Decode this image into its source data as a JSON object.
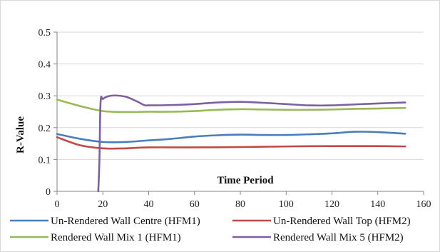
{
  "chart_data": {
    "type": "line",
    "title": "",
    "xlabel": "Time Period",
    "ylabel": "R-Value",
    "xlim": [
      0,
      160
    ],
    "ylim": [
      0,
      0.5
    ],
    "x_ticks": [
      0,
      20,
      40,
      60,
      80,
      100,
      120,
      140,
      160
    ],
    "y_ticks": [
      0,
      0.1,
      0.2,
      0.3,
      0.4,
      0.5
    ],
    "x_tick_labels": [
      "0",
      "20",
      "40",
      "60",
      "80",
      "100",
      "120",
      "140",
      "160"
    ],
    "y_tick_labels": [
      "0",
      "0.1",
      "0.2",
      "0.3",
      "0.4",
      "0.5"
    ],
    "grid": "horizontal",
    "legend_position": "bottom",
    "series": [
      {
        "name": "Un-Rendered Wall Centre (HFM1)",
        "color": "#4a7ebb",
        "x": [
          0,
          10,
          20,
          30,
          40,
          50,
          60,
          70,
          80,
          90,
          100,
          110,
          120,
          130,
          140,
          152
        ],
        "y": [
          0.18,
          0.165,
          0.155,
          0.155,
          0.16,
          0.165,
          0.172,
          0.176,
          0.178,
          0.177,
          0.177,
          0.179,
          0.182,
          0.187,
          0.186,
          0.181
        ]
      },
      {
        "name": "Un-Rendered Wall Top (HFM2)",
        "color": "#be4b48",
        "x": [
          0,
          10,
          20,
          30,
          40,
          60,
          80,
          100,
          120,
          140,
          152
        ],
        "y": [
          0.17,
          0.145,
          0.135,
          0.135,
          0.138,
          0.138,
          0.139,
          0.141,
          0.142,
          0.142,
          0.141
        ]
      },
      {
        "name": "Rendered Wall Mix 1 (HFM1)",
        "color": "#98b954",
        "x": [
          0,
          10,
          20,
          30,
          40,
          50,
          60,
          70,
          80,
          90,
          100,
          110,
          120,
          130,
          140,
          152
        ],
        "y": [
          0.288,
          0.268,
          0.252,
          0.249,
          0.25,
          0.25,
          0.252,
          0.256,
          0.258,
          0.257,
          0.256,
          0.256,
          0.257,
          0.259,
          0.26,
          0.262
        ]
      },
      {
        "name": "Rendered Wall Mix 5 (HFM2)",
        "color": "#7d60a0",
        "x": [
          18,
          18.5,
          19,
          20,
          22,
          25,
          30,
          35,
          38,
          40,
          50,
          60,
          70,
          80,
          90,
          100,
          110,
          120,
          130,
          140,
          152
        ],
        "y": [
          0,
          0.1,
          0.28,
          0.29,
          0.298,
          0.301,
          0.297,
          0.282,
          0.271,
          0.27,
          0.271,
          0.274,
          0.279,
          0.281,
          0.278,
          0.274,
          0.27,
          0.27,
          0.273,
          0.276,
          0.279
        ]
      }
    ]
  }
}
